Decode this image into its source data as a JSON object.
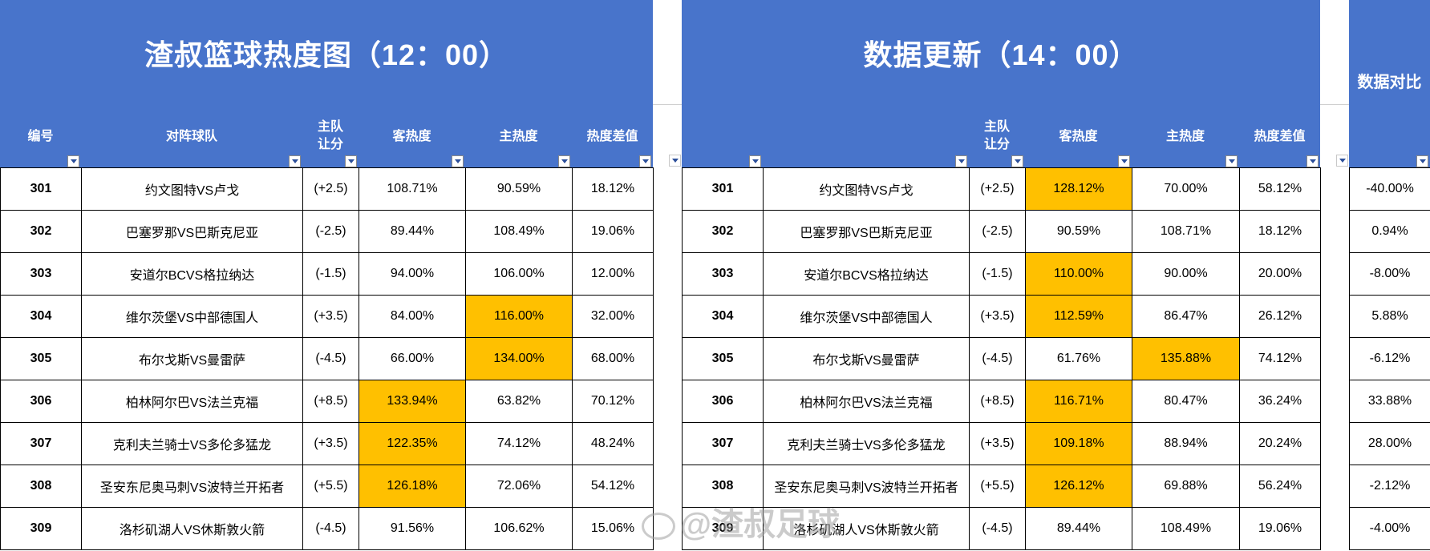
{
  "left": {
    "title": "渣叔篮球热度图（12：00）",
    "headers": [
      "编号",
      "对阵球队",
      "主队\n让分",
      "客热度",
      "主热度",
      "热度差值"
    ],
    "rows": [
      [
        "301",
        "约文图特VS卢戈",
        "(+2.5)",
        "108.71%",
        "90.59%",
        "18.12%"
      ],
      [
        "302",
        "巴塞罗那VS巴斯克尼亚",
        "(-2.5)",
        "89.44%",
        "108.49%",
        "19.06%"
      ],
      [
        "303",
        "安道尔BCVS格拉纳达",
        "(-1.5)",
        "94.00%",
        "106.00%",
        "12.00%"
      ],
      [
        "304",
        "维尔茨堡VS中部德国人",
        "(+3.5)",
        "84.00%",
        "116.00%",
        "32.00%"
      ],
      [
        "305",
        "布尔戈斯VS曼雷萨",
        "(-4.5)",
        "66.00%",
        "134.00%",
        "68.00%"
      ],
      [
        "306",
        "柏林阿尔巴VS法兰克福",
        "(+8.5)",
        "133.94%",
        "63.82%",
        "70.12%"
      ],
      [
        "307",
        "克利夫兰骑士VS多伦多猛龙",
        "(+3.5)",
        "122.35%",
        "74.12%",
        "48.24%"
      ],
      [
        "308",
        "圣安东尼奥马刺VS波特兰开拓者",
        "(+5.5)",
        "126.18%",
        "72.06%",
        "54.12%"
      ],
      [
        "309",
        "洛杉矶湖人VS休斯敦火箭",
        "(-4.5)",
        "91.56%",
        "106.62%",
        "15.06%"
      ]
    ],
    "highlight": [
      [],
      [],
      [],
      [
        4
      ],
      [
        4
      ],
      [
        3
      ],
      [
        3
      ],
      [
        3
      ],
      []
    ]
  },
  "right": {
    "title": "数据更新（14：00）",
    "headers": [
      "",
      "",
      "主队\n让分",
      "客热度",
      "主热度",
      "热度差值"
    ],
    "rows": [
      [
        "301",
        "约文图特VS卢戈",
        "(+2.5)",
        "128.12%",
        "70.00%",
        "58.12%"
      ],
      [
        "302",
        "巴塞罗那VS巴斯克尼亚",
        "(-2.5)",
        "90.59%",
        "108.71%",
        "18.12%"
      ],
      [
        "303",
        "安道尔BCVS格拉纳达",
        "(-1.5)",
        "110.00%",
        "90.00%",
        "20.00%"
      ],
      [
        "304",
        "维尔茨堡VS中部德国人",
        "(+3.5)",
        "112.59%",
        "86.47%",
        "26.12%"
      ],
      [
        "305",
        "布尔戈斯VS曼雷萨",
        "(-4.5)",
        "61.76%",
        "135.88%",
        "74.12%"
      ],
      [
        "306",
        "柏林阿尔巴VS法兰克福",
        "(+8.5)",
        "116.71%",
        "80.47%",
        "36.24%"
      ],
      [
        "307",
        "克利夫兰骑士VS多伦多猛龙",
        "(+3.5)",
        "109.18%",
        "88.94%",
        "20.24%"
      ],
      [
        "308",
        "圣安东尼奥马刺VS波特兰开拓者",
        "(+5.5)",
        "126.12%",
        "69.88%",
        "56.24%"
      ],
      [
        "309",
        "洛杉矶湖人VS休斯敦火箭",
        "(-4.5)",
        "89.44%",
        "108.49%",
        "19.06%"
      ]
    ],
    "highlight": [
      [
        3
      ],
      [],
      [
        3
      ],
      [
        3
      ],
      [
        4
      ],
      [
        3
      ],
      [
        3
      ],
      [
        3
      ],
      []
    ]
  },
  "compare": {
    "title": "数据对比",
    "values": [
      "-40.00%",
      "0.94%",
      "-8.00%",
      "5.88%",
      "-6.12%",
      "33.88%",
      "28.00%",
      "-2.12%",
      "-4.00%"
    ]
  },
  "watermark": "@渣叔足球",
  "colors": {
    "header_bg": "#4874cb",
    "highlight": "#ffc000"
  }
}
